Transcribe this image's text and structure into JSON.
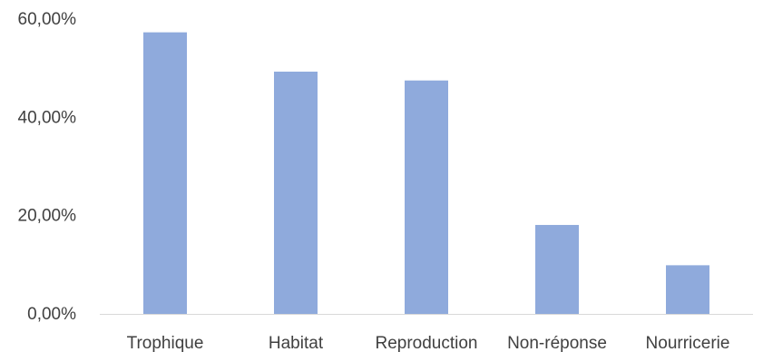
{
  "chart_data": {
    "type": "bar",
    "categories": [
      "Trophique",
      "Habitat",
      "Reproduction",
      "Non-réponse",
      "Nourricerie"
    ],
    "values": [
      57.3,
      49.3,
      47.5,
      18.1,
      9.9
    ],
    "value_format": "percent",
    "ylim": [
      0,
      60
    ],
    "yticks": [
      0,
      20,
      40,
      60
    ],
    "ytick_labels": [
      "0,00%",
      "20,00%",
      "40,00%",
      "60,00%"
    ],
    "title": "",
    "xlabel": "",
    "ylabel": "",
    "grid": false,
    "legend": "none",
    "colors": {
      "bar": "#8FAADC",
      "axis": "#D9D9D9",
      "text": "#404040"
    }
  }
}
